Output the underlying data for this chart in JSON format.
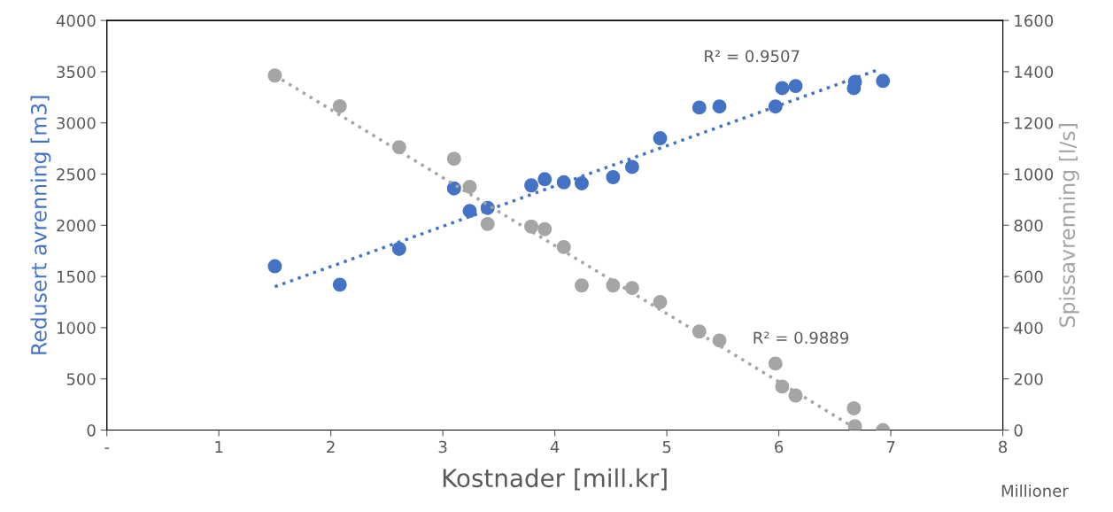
{
  "chart_data": {
    "type": "scatter",
    "xlabel": "Kostnader [mill.kr]",
    "ylabel": "Redusert avrenning [m3]",
    "y2label": "Spissavrenning [l/s]",
    "xlim": [
      0,
      8
    ],
    "xticks": [
      {
        "value": 0,
        "label": "-"
      },
      1,
      2,
      3,
      4,
      5,
      6,
      7,
      8
    ],
    "ylim": [
      0,
      4000
    ],
    "yticks": [
      0,
      500,
      1000,
      1500,
      2000,
      2500,
      3000,
      3500,
      4000
    ],
    "y2lim": [
      0,
      1600
    ],
    "y2ticks": [
      0,
      200,
      400,
      600,
      800,
      1000,
      1200,
      1400,
      1600
    ],
    "marker": "circle",
    "grid": false,
    "legend": false,
    "annotations": [
      "R² = 0.9507",
      "R² = 0.9889",
      "Millioner"
    ],
    "series": [
      {
        "color": "#4472c4",
        "x": [
          1.5,
          2.08,
          2.61,
          3.1,
          3.24,
          3.4,
          3.79,
          3.91,
          4.08,
          4.24,
          4.52,
          4.69,
          4.94,
          5.29,
          5.47,
          5.97,
          6.03,
          6.15,
          6.67,
          6.68,
          6.93
        ],
        "values": [
          1600,
          1420,
          1770,
          2360,
          2140,
          2170,
          2390,
          2450,
          2420,
          2410,
          2470,
          2570,
          2850,
          3150,
          3160,
          3160,
          3340,
          3360,
          3340,
          3400,
          3410
        ]
      },
      {
        "color": "#a5a5a5",
        "axis": "y2",
        "x": [
          1.5,
          2.08,
          2.61,
          3.1,
          3.24,
          3.4,
          3.79,
          3.91,
          4.08,
          4.24,
          4.52,
          4.69,
          4.94,
          5.29,
          5.47,
          5.97,
          6.03,
          6.15,
          6.67,
          6.68,
          6.93
        ],
        "values": [
          1385,
          1265,
          1105,
          1060,
          950,
          805,
          795,
          785,
          715,
          565,
          565,
          555,
          500,
          385,
          350,
          260,
          170,
          135,
          85,
          15,
          0
        ]
      },
      {
        "type": "line",
        "line_style": "dotted",
        "marker": "none",
        "color": "#4472c4",
        "x": [
          1.5,
          6.89
        ],
        "values": [
          1400,
          3520
        ]
      },
      {
        "type": "line",
        "line_style": "dotted",
        "marker": "none",
        "color": "#a5a5a5",
        "axis": "y2",
        "x": [
          1.5,
          6.71
        ],
        "values": [
          1385,
          0
        ]
      }
    ]
  }
}
